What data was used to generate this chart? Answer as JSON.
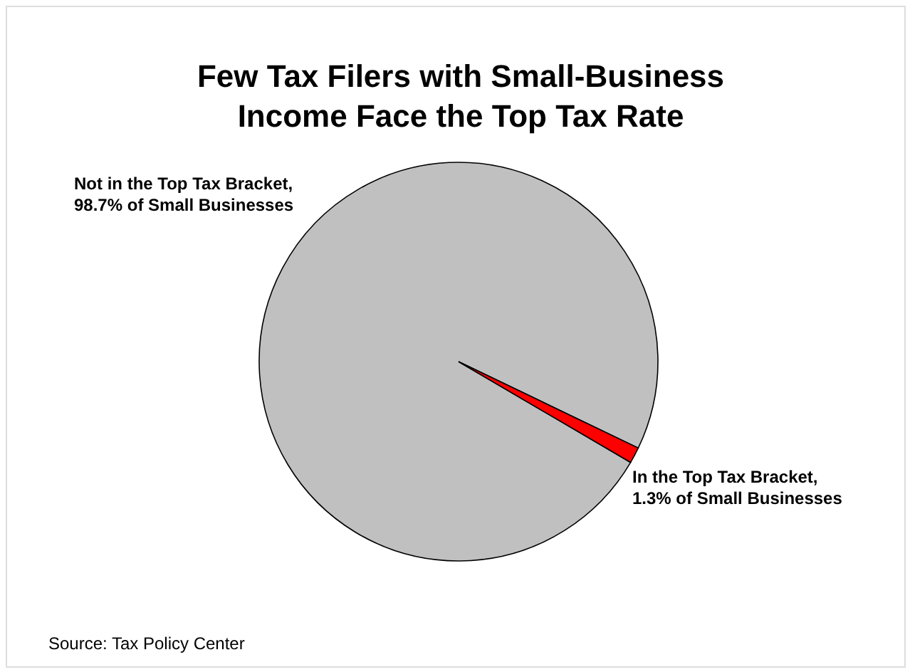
{
  "chart_data": {
    "type": "pie",
    "title": "Few Tax Filers with Small-Business Income Face the Top Tax Rate",
    "categories": [
      "Not in the Top Tax Bracket, 98.7% of Small Businesses",
      "In the Top Tax Bracket, 1.3% of Small Businesses"
    ],
    "values": [
      98.7,
      1.3
    ],
    "colors": [
      "#c0c0c0",
      "#ff0000"
    ],
    "annotations": [
      "Source: Tax Policy Center"
    ]
  }
}
